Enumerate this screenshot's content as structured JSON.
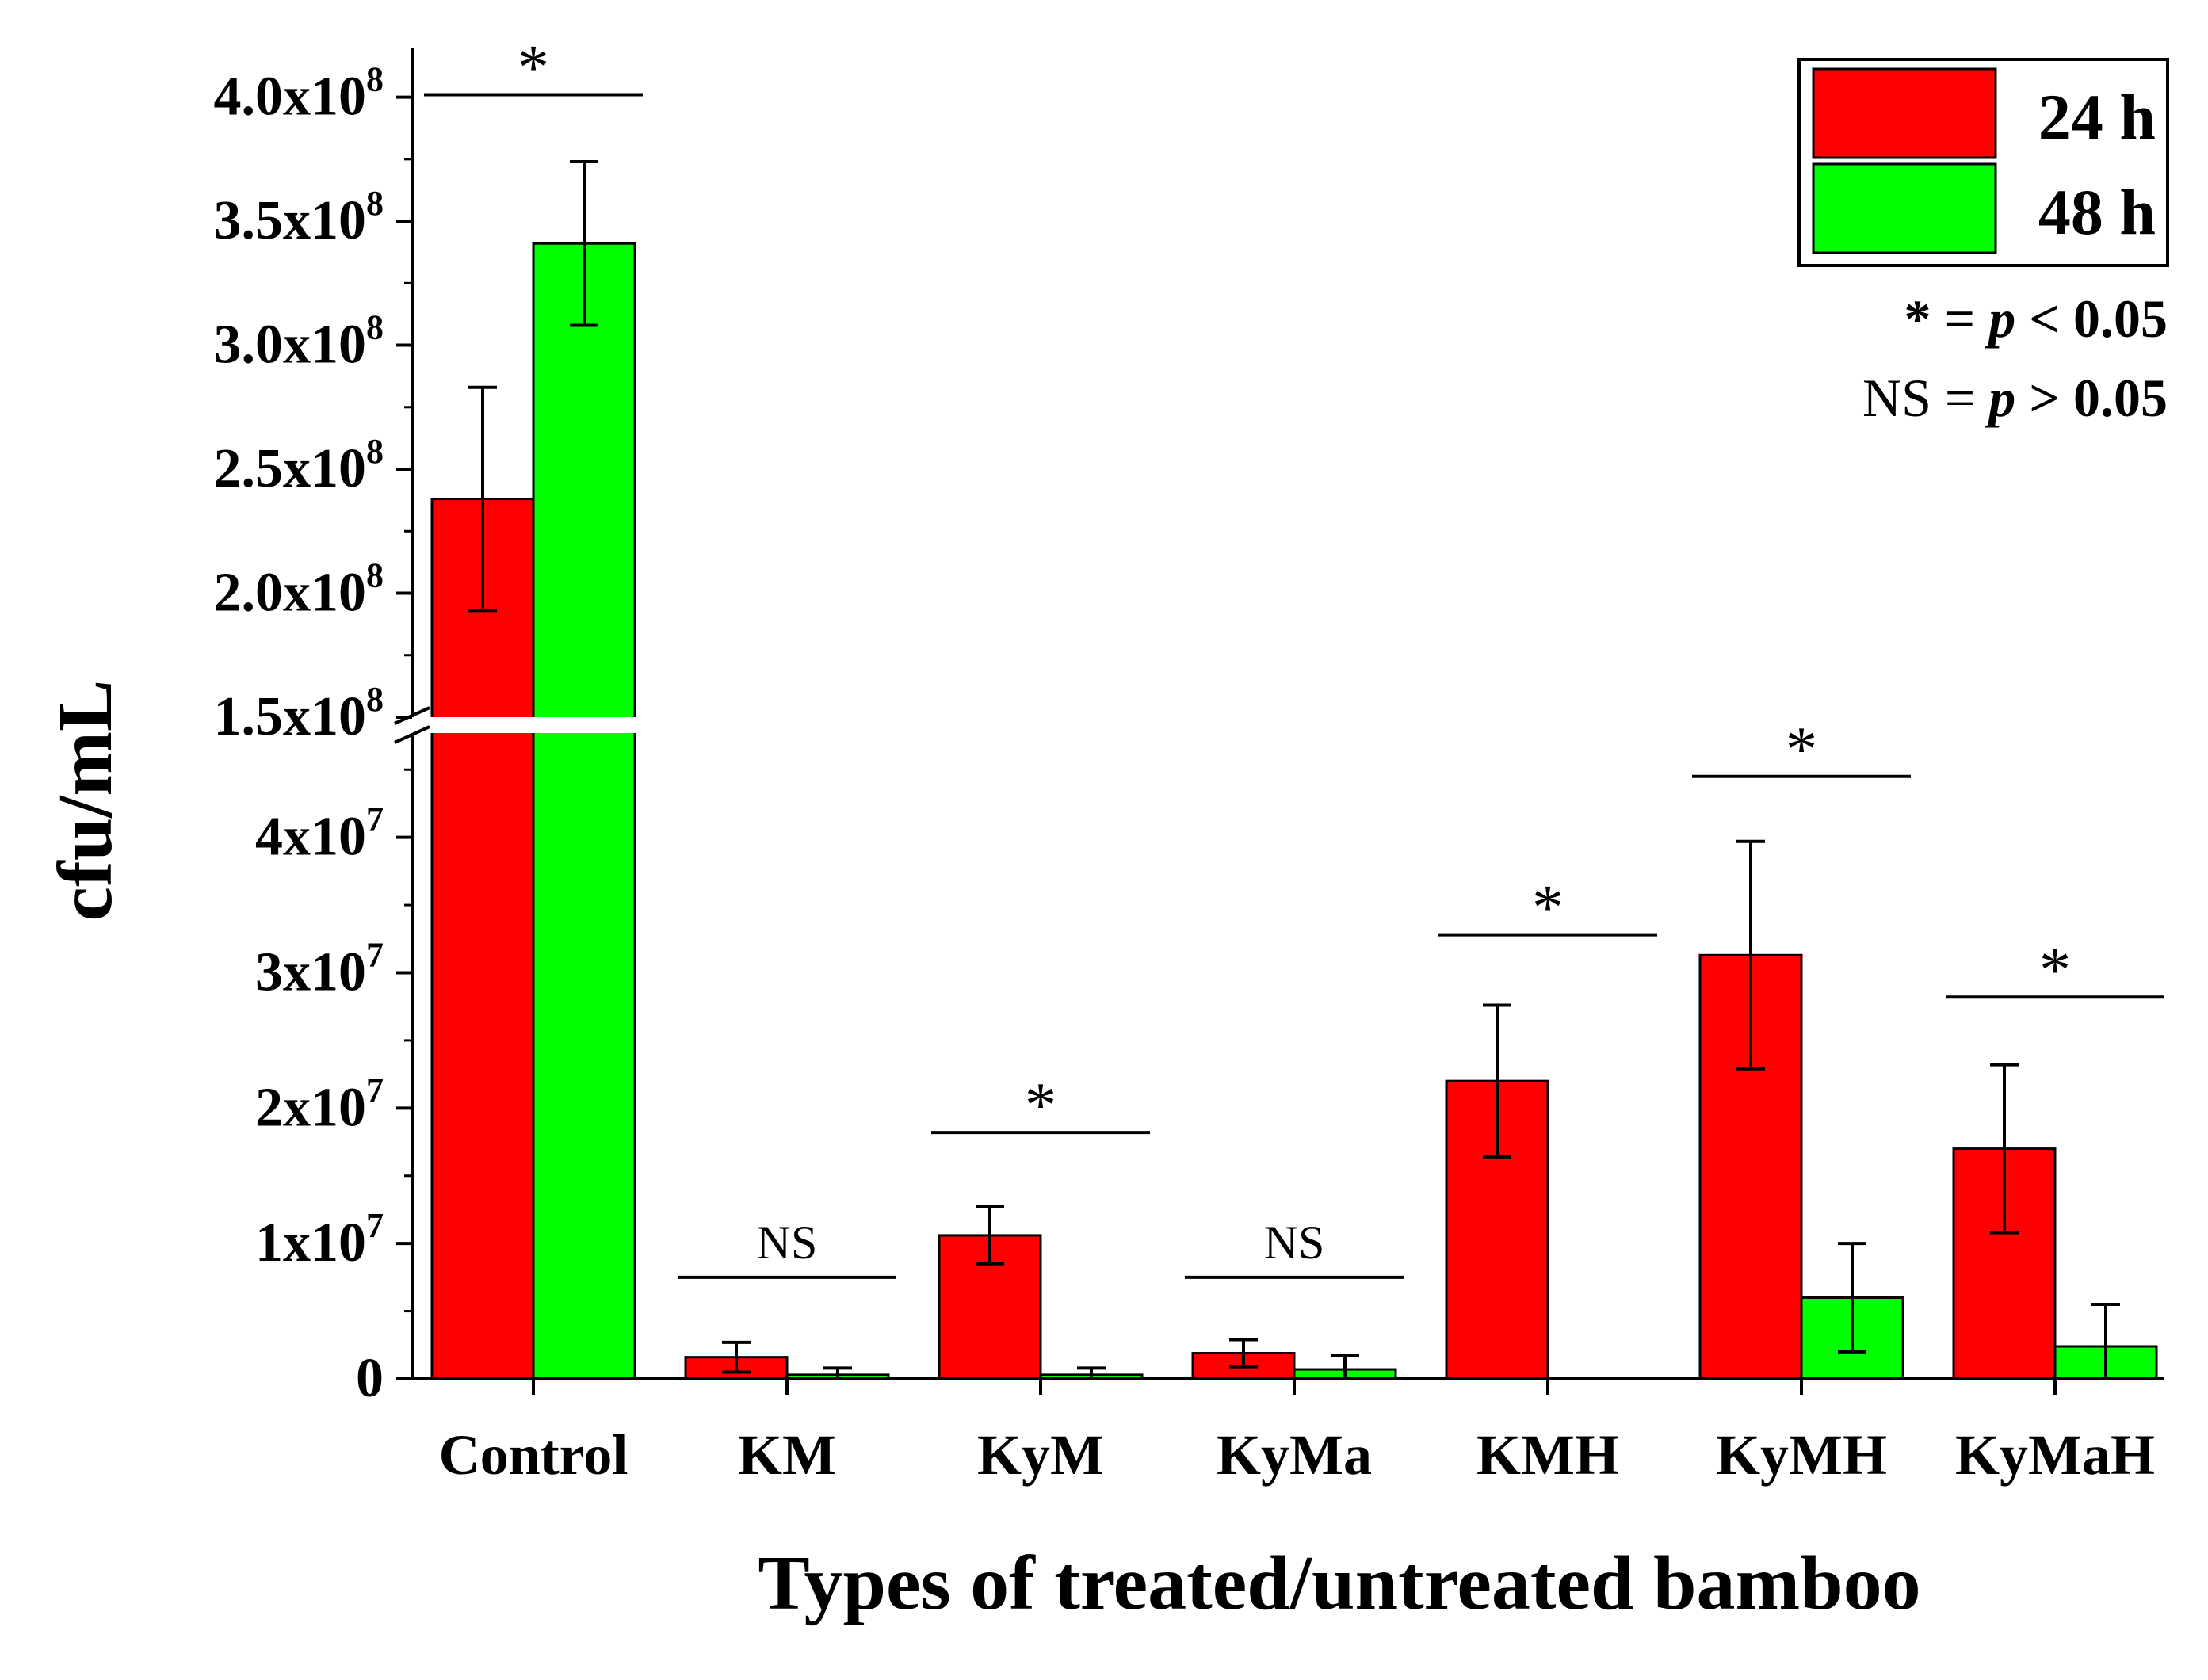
{
  "chart_data": {
    "type": "bar",
    "categories": [
      "Control",
      "KM",
      "KyM",
      "KyMa",
      "KMH",
      "KyMH",
      "KyMaH"
    ],
    "series": [
      {
        "name": "24 h",
        "color": "#ff0000",
        "values": [
          238000000,
          1600000,
          10600000,
          1900000,
          22000000,
          31300000,
          17000000
        ],
        "errors": [
          45000000,
          1100000,
          2100000,
          1000000,
          5600000,
          8400000,
          6200000
        ]
      },
      {
        "name": "48 h",
        "color": "#00ff00",
        "values": [
          341000000,
          300000,
          300000,
          700000,
          0,
          6000000,
          2400000
        ],
        "errors": [
          33000000,
          500000,
          500000,
          1000000,
          0,
          4000000,
          3100000
        ]
      }
    ],
    "ylabel": "cfu/mL",
    "xlabel": "Types of treated/untreated bamboo",
    "y_broken_axis": {
      "lower_range": [
        0,
        48000000
      ],
      "upper_range": [
        150000000,
        420000000
      ],
      "lower_ticks": [
        {
          "value": 0,
          "base": "0",
          "exp": ""
        },
        {
          "value": 10000000,
          "base": "1x10",
          "exp": "7"
        },
        {
          "value": 20000000,
          "base": "2x10",
          "exp": "7"
        },
        {
          "value": 30000000,
          "base": "3x10",
          "exp": "7"
        },
        {
          "value": 40000000,
          "base": "4x10",
          "exp": "7"
        }
      ],
      "upper_ticks": [
        {
          "value": 150000000,
          "base": "1.5x10",
          "exp": "8"
        },
        {
          "value": 200000000,
          "base": "2.0x10",
          "exp": "8"
        },
        {
          "value": 250000000,
          "base": "2.5x10",
          "exp": "8"
        },
        {
          "value": 300000000,
          "base": "3.0x10",
          "exp": "8"
        },
        {
          "value": 350000000,
          "base": "3.5x10",
          "exp": "8"
        },
        {
          "value": 400000000,
          "base": "4.0x10",
          "exp": "8"
        }
      ]
    },
    "significance": [
      {
        "category": "Control",
        "label": "*",
        "line_value": 401000000
      },
      {
        "category": "KM",
        "label": "NS",
        "line_value": 7500000
      },
      {
        "category": "KyM",
        "label": "*",
        "line_value": 18200000
      },
      {
        "category": "KyMa",
        "label": "NS",
        "line_value": 7500000
      },
      {
        "category": "KMH",
        "label": "*",
        "line_value": 32800000
      },
      {
        "category": "KyMH",
        "label": "*",
        "line_value": 44500000
      },
      {
        "category": "KyMaH",
        "label": "*",
        "line_value": 28200000
      }
    ],
    "legend_position": "top-right",
    "notes": [
      {
        "prefix": "* = ",
        "p": "p",
        "suffix": " < 0.05"
      },
      {
        "prefix": "NS = ",
        "p": "p",
        "suffix": " > 0.05"
      }
    ]
  }
}
